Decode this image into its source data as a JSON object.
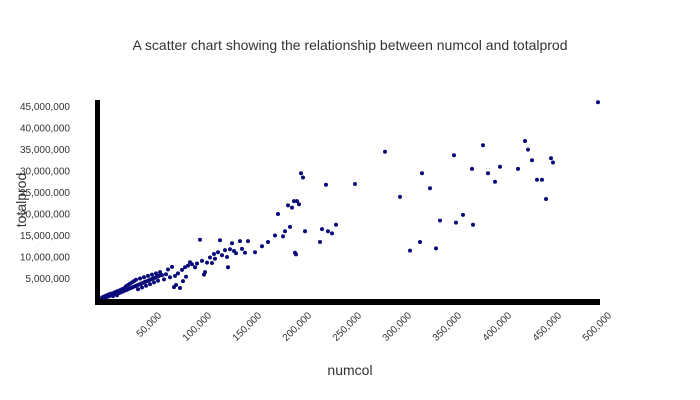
{
  "chart_data": {
    "type": "scatter",
    "title": "A scatter chart showing the relationship between numcol and totalprod",
    "xlabel": "numcol",
    "ylabel": "totalprod",
    "xlim": [
      0,
      500000
    ],
    "ylim": [
      0,
      47000000
    ],
    "x_ticks": [
      {
        "value": 50000,
        "label": "50,000"
      },
      {
        "value": 100000,
        "label": "100,000"
      },
      {
        "value": 150000,
        "label": "150,000"
      },
      {
        "value": 200000,
        "label": "200,000"
      },
      {
        "value": 250000,
        "label": "250,000"
      },
      {
        "value": 300000,
        "label": "300,000"
      },
      {
        "value": 350000,
        "label": "350,000"
      },
      {
        "value": 400000,
        "label": "400,000"
      },
      {
        "value": 450000,
        "label": "450,000"
      },
      {
        "value": 500000,
        "label": "500,000"
      }
    ],
    "y_ticks": [
      {
        "value": 5000000,
        "label": "5,000,000"
      },
      {
        "value": 10000000,
        "label": "10,000,000"
      },
      {
        "value": 15000000,
        "label": "15,000,000"
      },
      {
        "value": 20000000,
        "label": "20,000,000"
      },
      {
        "value": 25000000,
        "label": "25,000,000"
      },
      {
        "value": 30000000,
        "label": "30,000,000"
      },
      {
        "value": 35000000,
        "label": "35,000,000"
      },
      {
        "value": 40000000,
        "label": "40,000,000"
      },
      {
        "value": 45000000,
        "label": "45,000,000"
      }
    ],
    "point_color": "#0a0a7a",
    "grid": false,
    "points": [
      [
        1000,
        300000
      ],
      [
        2000,
        500000
      ],
      [
        3000,
        700000
      ],
      [
        4000,
        400000
      ],
      [
        5000,
        900000
      ],
      [
        6000,
        600000
      ],
      [
        7000,
        1100000
      ],
      [
        8000,
        800000
      ],
      [
        9000,
        1300000
      ],
      [
        10000,
        1000000
      ],
      [
        11000,
        1500000
      ],
      [
        12000,
        1200000
      ],
      [
        13000,
        900000
      ],
      [
        14000,
        1700000
      ],
      [
        15000,
        1400000
      ],
      [
        16000,
        1900000
      ],
      [
        17000,
        1100000
      ],
      [
        18000,
        2100000
      ],
      [
        19000,
        1600000
      ],
      [
        20000,
        2300000
      ],
      [
        21000,
        1800000
      ],
      [
        22000,
        2500000
      ],
      [
        23000,
        2000000
      ],
      [
        24000,
        2700000
      ],
      [
        25000,
        2200000
      ],
      [
        26000,
        3200000
      ],
      [
        27000,
        2400000
      ],
      [
        28000,
        3500000
      ],
      [
        29000,
        2600000
      ],
      [
        30000,
        3800000
      ],
      [
        31000,
        2800000
      ],
      [
        32000,
        4100000
      ],
      [
        33000,
        3000000
      ],
      [
        34000,
        4400000
      ],
      [
        35000,
        3200000
      ],
      [
        36000,
        4700000
      ],
      [
        37000,
        3400000
      ],
      [
        38000,
        2500000
      ],
      [
        39000,
        3600000
      ],
      [
        40000,
        5000000
      ],
      [
        41000,
        3800000
      ],
      [
        42000,
        2900000
      ],
      [
        43000,
        4000000
      ],
      [
        44000,
        5300000
      ],
      [
        45000,
        4200000
      ],
      [
        46000,
        3300000
      ],
      [
        47000,
        4400000
      ],
      [
        48000,
        5600000
      ],
      [
        49000,
        4600000
      ],
      [
        50000,
        3700000
      ],
      [
        51000,
        4800000
      ],
      [
        52000,
        5900000
      ],
      [
        53000,
        5000000
      ],
      [
        54000,
        4100000
      ],
      [
        55000,
        5200000
      ],
      [
        56000,
        6200000
      ],
      [
        57000,
        5400000
      ],
      [
        58000,
        4500000
      ],
      [
        59000,
        5600000
      ],
      [
        60000,
        6500000
      ],
      [
        62000,
        5800000
      ],
      [
        64000,
        4800000
      ],
      [
        66000,
        6000000
      ],
      [
        68000,
        7100000
      ],
      [
        70000,
        5300000
      ],
      [
        72000,
        7700000
      ],
      [
        74000,
        3000000
      ],
      [
        75000,
        5600000
      ],
      [
        76000,
        3500000
      ],
      [
        78000,
        6200000
      ],
      [
        80000,
        2800000
      ],
      [
        82000,
        7000000
      ],
      [
        83000,
        4400000
      ],
      [
        85000,
        7600000
      ],
      [
        86000,
        5400000
      ],
      [
        88000,
        8000000
      ],
      [
        90000,
        8800000
      ],
      [
        92000,
        8300000
      ],
      [
        95000,
        7600000
      ],
      [
        97000,
        8500000
      ],
      [
        100000,
        14000000
      ],
      [
        102000,
        9100000
      ],
      [
        104000,
        5900000
      ],
      [
        105000,
        6500000
      ],
      [
        107000,
        8700000
      ],
      [
        110000,
        9900000
      ],
      [
        112000,
        8600000
      ],
      [
        114000,
        10700000
      ],
      [
        115000,
        9600000
      ],
      [
        118000,
        11100000
      ],
      [
        120000,
        13900000
      ],
      [
        122000,
        10400000
      ],
      [
        125000,
        11600000
      ],
      [
        127000,
        10000000
      ],
      [
        128000,
        7600000
      ],
      [
        130000,
        11800000
      ],
      [
        132000,
        13200000
      ],
      [
        134000,
        11400000
      ],
      [
        136000,
        10900000
      ],
      [
        140000,
        13700000
      ],
      [
        142000,
        11900000
      ],
      [
        145000,
        11000000
      ],
      [
        148000,
        13700000
      ],
      [
        155000,
        11100000
      ],
      [
        162000,
        12500000
      ],
      [
        168000,
        13500000
      ],
      [
        175000,
        15000000
      ],
      [
        178000,
        20000000
      ],
      [
        183000,
        14800000
      ],
      [
        185000,
        16000000
      ],
      [
        188000,
        22000000
      ],
      [
        190000,
        17000000
      ],
      [
        192000,
        21500000
      ],
      [
        194000,
        23000000
      ],
      [
        195000,
        11000000
      ],
      [
        196000,
        10600000
      ],
      [
        197000,
        23000000
      ],
      [
        199000,
        22300000
      ],
      [
        201000,
        29500000
      ],
      [
        203000,
        28500000
      ],
      [
        205000,
        16000000
      ],
      [
        220000,
        13500000
      ],
      [
        222000,
        16500000
      ],
      [
        226000,
        26800000
      ],
      [
        228000,
        16000000
      ],
      [
        232000,
        15500000
      ],
      [
        236000,
        17500000
      ],
      [
        255000,
        27000000
      ],
      [
        285000,
        34500000
      ],
      [
        300000,
        24000000
      ],
      [
        310000,
        11500000
      ],
      [
        320000,
        13500000
      ],
      [
        322000,
        29500000
      ],
      [
        330000,
        26000000
      ],
      [
        336000,
        12000000
      ],
      [
        340000,
        18500000
      ],
      [
        354000,
        33700000
      ],
      [
        356000,
        18000000
      ],
      [
        363000,
        19800000
      ],
      [
        372000,
        30500000
      ],
      [
        373000,
        17500000
      ],
      [
        383000,
        36000000
      ],
      [
        388000,
        29500000
      ],
      [
        395000,
        27500000
      ],
      [
        400000,
        31000000
      ],
      [
        418000,
        30500000
      ],
      [
        425000,
        37000000
      ],
      [
        428000,
        35000000
      ],
      [
        432000,
        32500000
      ],
      [
        437000,
        28000000
      ],
      [
        442000,
        28000000
      ],
      [
        446000,
        23500000
      ],
      [
        451000,
        33000000
      ],
      [
        453000,
        32000000
      ],
      [
        498000,
        46000000
      ]
    ]
  }
}
